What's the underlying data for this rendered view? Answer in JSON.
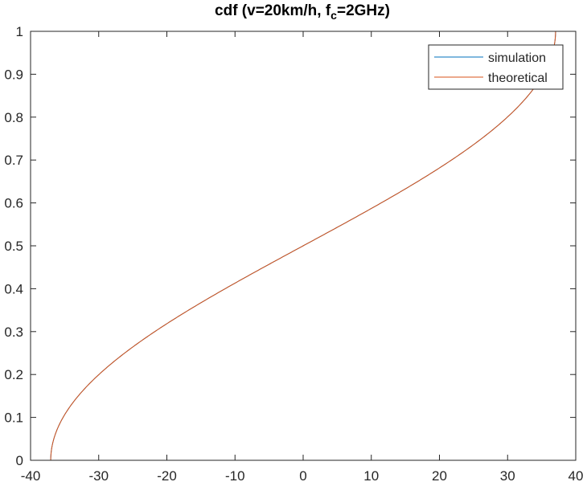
{
  "chart_data": {
    "type": "line",
    "title": {
      "prefix": "cdf (v=20km/h, f",
      "subscript": "c",
      "suffix": "=2GHz)"
    },
    "xlabel": "",
    "ylabel": "",
    "xlim": [
      -40,
      40
    ],
    "ylim": [
      0,
      1
    ],
    "xticks": [
      "-40",
      "-30",
      "-20",
      "-10",
      "0",
      "10",
      "20",
      "30",
      "40"
    ],
    "yticks": [
      "0",
      "0.1",
      "0.2",
      "0.3",
      "0.4",
      "0.5",
      "0.6",
      "0.7",
      "0.8",
      "0.9",
      "1"
    ],
    "grid": false,
    "legend_position": "top-right",
    "fd_max": 37.04,
    "series": [
      {
        "name": "simulation",
        "color": "#0072BD",
        "function": "jakes-doppler-cdf"
      },
      {
        "name": "theoretical",
        "color": "#D95319",
        "function": "jakes-doppler-cdf"
      }
    ]
  }
}
